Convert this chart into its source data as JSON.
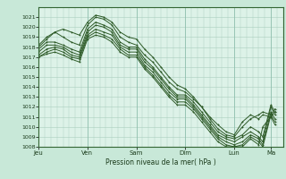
{
  "xlabel": "Pression niveau de la mer( hPa )",
  "ylim": [
    1008,
    1022
  ],
  "yticks": [
    1008,
    1009,
    1010,
    1011,
    1012,
    1013,
    1014,
    1015,
    1016,
    1017,
    1018,
    1019,
    1020,
    1021
  ],
  "xtick_labels": [
    "Jeu",
    "Ven",
    "Sam",
    "Dim",
    "Lun",
    "Ma"
  ],
  "xtick_positions": [
    0,
    24,
    48,
    72,
    96,
    114
  ],
  "total_hours": 120,
  "bg_color": "#c8e8d8",
  "plot_bg_color": "#ddf2e8",
  "grid_color": "#aacfbe",
  "line_color": "#2d5a27",
  "marker": "D",
  "marker_size": 1.2,
  "line_width": 0.7,
  "lines": [
    [
      0,
      1018.0,
      4,
      1018.8,
      8,
      1019.5,
      12,
      1019.8,
      16,
      1019.5,
      20,
      1019.2,
      24,
      1020.5,
      28,
      1021.2,
      32,
      1021.0,
      36,
      1020.5,
      40,
      1019.5,
      44,
      1019.0,
      48,
      1018.8,
      52,
      1017.8,
      56,
      1017.0,
      60,
      1016.0,
      64,
      1015.0,
      68,
      1014.2,
      72,
      1013.8,
      76,
      1013.0,
      80,
      1012.0,
      84,
      1011.0,
      88,
      1010.2,
      92,
      1009.5,
      96,
      1009.2,
      100,
      1010.5,
      104,
      1011.2,
      108,
      1010.8,
      110,
      1011.2,
      114,
      1011.0,
      116,
      1011.5
    ],
    [
      0,
      1018.2,
      4,
      1019.0,
      8,
      1019.5,
      12,
      1019.0,
      16,
      1018.5,
      20,
      1018.2,
      24,
      1020.2,
      28,
      1021.0,
      32,
      1020.8,
      36,
      1020.2,
      40,
      1019.0,
      44,
      1018.5,
      48,
      1018.2,
      52,
      1017.2,
      56,
      1016.5,
      60,
      1015.5,
      64,
      1014.5,
      68,
      1013.8,
      72,
      1013.5,
      76,
      1012.8,
      80,
      1012.0,
      84,
      1010.8,
      88,
      1009.8,
      92,
      1009.2,
      96,
      1009.0,
      100,
      1010.0,
      104,
      1010.8,
      108,
      1011.2,
      110,
      1011.5,
      114,
      1011.2,
      116,
      1011.8
    ],
    [
      0,
      1017.8,
      4,
      1018.5,
      8,
      1018.5,
      12,
      1018.2,
      16,
      1017.8,
      20,
      1017.5,
      24,
      1019.8,
      28,
      1020.5,
      32,
      1020.2,
      36,
      1019.8,
      40,
      1018.5,
      44,
      1018.0,
      48,
      1018.0,
      52,
      1016.8,
      56,
      1016.0,
      60,
      1015.0,
      64,
      1014.0,
      68,
      1013.2,
      72,
      1013.2,
      76,
      1012.5,
      80,
      1011.5,
      84,
      1010.5,
      88,
      1009.5,
      92,
      1009.0,
      96,
      1008.8,
      100,
      1009.2,
      104,
      1010.0,
      108,
      1009.5,
      110,
      1009.0,
      114,
      1012.2,
      116,
      1011.5
    ],
    [
      0,
      1017.5,
      4,
      1018.2,
      8,
      1018.2,
      12,
      1018.0,
      16,
      1017.5,
      20,
      1017.2,
      24,
      1019.5,
      28,
      1020.2,
      32,
      1020.0,
      36,
      1019.5,
      40,
      1018.2,
      44,
      1017.8,
      48,
      1017.8,
      52,
      1016.5,
      56,
      1015.8,
      60,
      1014.8,
      64,
      1013.8,
      68,
      1013.0,
      72,
      1013.0,
      76,
      1012.2,
      80,
      1011.2,
      84,
      1010.2,
      88,
      1009.2,
      92,
      1008.8,
      96,
      1008.5,
      100,
      1009.0,
      104,
      1009.5,
      108,
      1009.0,
      110,
      1008.5,
      114,
      1012.0,
      116,
      1011.2
    ],
    [
      0,
      1017.2,
      4,
      1017.8,
      8,
      1018.0,
      12,
      1017.8,
      16,
      1017.2,
      20,
      1017.0,
      24,
      1019.2,
      28,
      1019.8,
      32,
      1019.5,
      36,
      1019.2,
      40,
      1018.0,
      44,
      1017.5,
      48,
      1017.5,
      52,
      1016.2,
      56,
      1015.5,
      60,
      1014.5,
      64,
      1013.5,
      68,
      1012.8,
      72,
      1012.8,
      76,
      1012.0,
      80,
      1011.0,
      84,
      1010.0,
      88,
      1009.0,
      92,
      1008.5,
      96,
      1008.2,
      100,
      1008.5,
      104,
      1009.2,
      108,
      1008.8,
      110,
      1008.2,
      114,
      1011.5,
      116,
      1010.8
    ],
    [
      0,
      1017.0,
      4,
      1017.5,
      8,
      1017.8,
      12,
      1017.5,
      16,
      1017.0,
      20,
      1016.8,
      24,
      1019.0,
      28,
      1019.5,
      32,
      1019.2,
      36,
      1018.8,
      40,
      1017.8,
      44,
      1017.2,
      48,
      1017.2,
      52,
      1016.0,
      56,
      1015.2,
      60,
      1014.2,
      64,
      1013.2,
      68,
      1012.5,
      72,
      1012.5,
      76,
      1011.8,
      80,
      1010.8,
      84,
      1009.8,
      88,
      1008.8,
      92,
      1008.2,
      96,
      1008.0,
      100,
      1008.2,
      104,
      1009.0,
      108,
      1008.5,
      110,
      1008.0,
      114,
      1011.2,
      116,
      1010.5
    ],
    [
      0,
      1017.0,
      4,
      1017.3,
      8,
      1017.5,
      12,
      1017.2,
      16,
      1016.8,
      20,
      1016.5,
      24,
      1018.8,
      28,
      1019.2,
      32,
      1019.0,
      36,
      1018.5,
      40,
      1017.5,
      44,
      1017.0,
      48,
      1017.0,
      52,
      1015.8,
      56,
      1015.0,
      60,
      1014.0,
      64,
      1013.0,
      68,
      1012.2,
      72,
      1012.2,
      76,
      1011.5,
      80,
      1010.5,
      84,
      1009.5,
      88,
      1008.5,
      92,
      1008.0,
      96,
      1008.0,
      100,
      1008.0,
      104,
      1008.8,
      108,
      1008.2,
      110,
      1010.0,
      114,
      1011.0,
      116,
      1010.2
    ]
  ]
}
